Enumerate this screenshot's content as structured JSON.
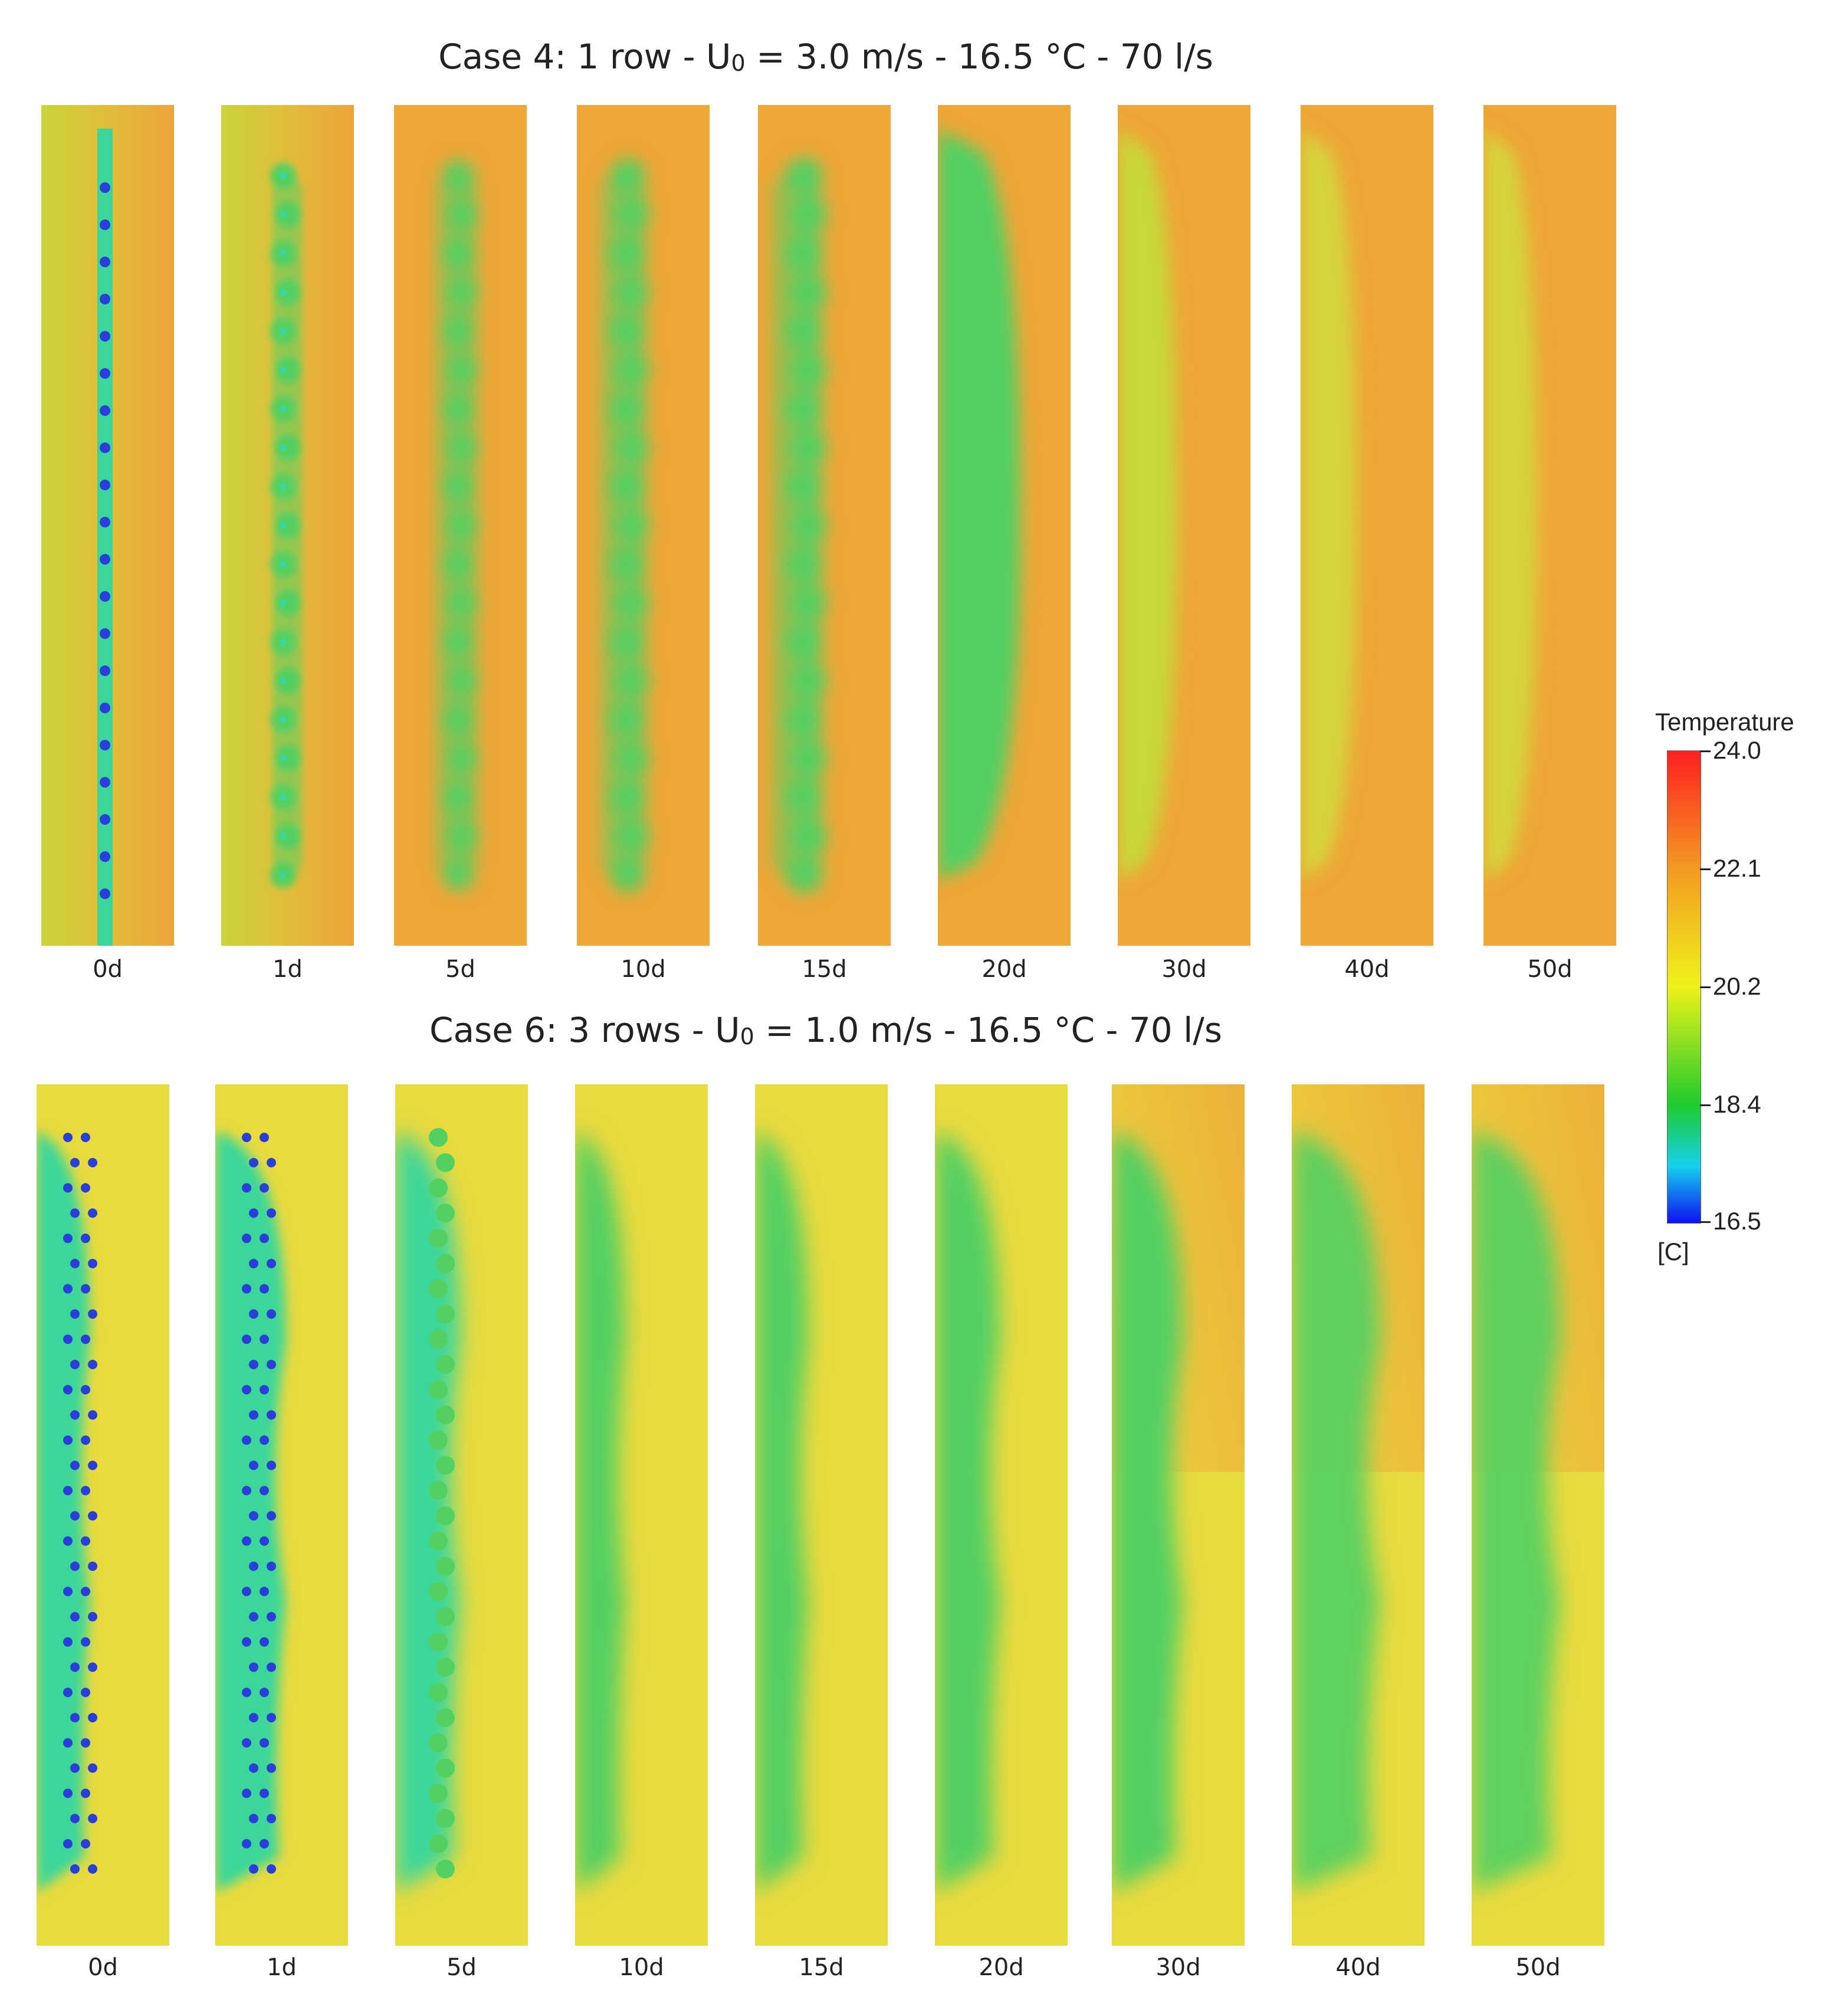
{
  "case4": {
    "title_prefix": "Case 4: 1 row - U",
    "title_sub": "0",
    "title_suffix": " = 3.0 m/s - 16.5 °C -  70 l/s",
    "labels": [
      "0d",
      "1d",
      "5d",
      "10d",
      "15d",
      "20d",
      "30d",
      "40d",
      "50d"
    ]
  },
  "case6": {
    "title_prefix": "Case 6: 3 rows - U",
    "title_sub": "0",
    "title_suffix": " = 1.0 m/s - 16.5 °C -  70 l/s",
    "labels": [
      "0d",
      "1d",
      "5d",
      "10d",
      "15d",
      "20d",
      "30d",
      "40d",
      "50d"
    ]
  },
  "legend": {
    "title": "Temperature",
    "ticks": [
      "24.0",
      "22.1",
      "20.2",
      "18.4",
      "16.5"
    ],
    "unit": "[C]"
  },
  "colors": {
    "hot": "#eda43a",
    "warm_orange": "#eea637",
    "yellow": "#e9da3e",
    "light_green": "#bddb38",
    "green": "#52d062",
    "cyan_green": "#3bd79a",
    "blue": "#2a3fd8"
  }
}
